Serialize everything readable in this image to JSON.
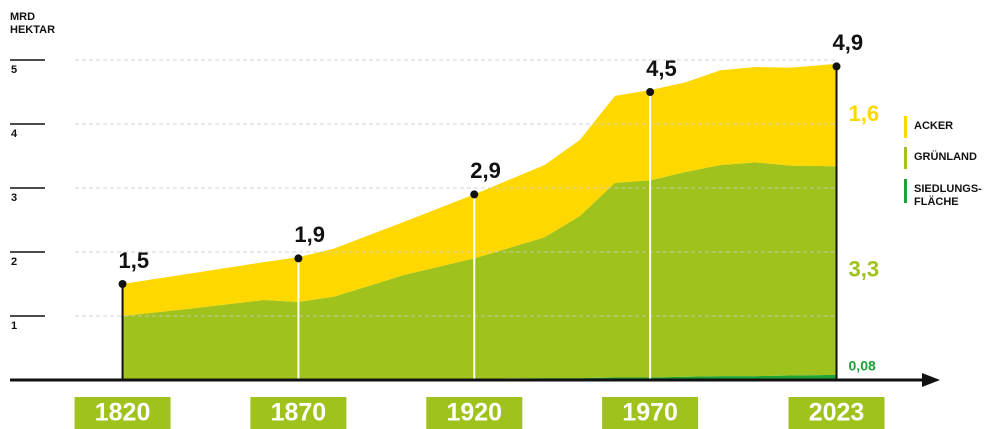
{
  "chart_data": {
    "type": "stacked_area",
    "y_label": "MRD\nHEKTAR",
    "x": [
      1820,
      1840,
      1860,
      1870,
      1880,
      1900,
      1920,
      1940,
      1950,
      1960,
      1970,
      1980,
      1990,
      2000,
      2010,
      2023
    ],
    "xlim": [
      1788,
      2051
    ],
    "xticks": [
      1820,
      1870,
      1920,
      1970,
      2023
    ],
    "ylim": [
      0,
      5
    ],
    "yticks": [
      1,
      2,
      3,
      4,
      5
    ],
    "grid": true,
    "series": [
      {
        "name": "SIEDLUNGS-\nFLÄCHE",
        "color": "#1fa337",
        "values": [
          0.01,
          0.01,
          0.01,
          0.01,
          0.01,
          0.02,
          0.02,
          0.03,
          0.03,
          0.04,
          0.04,
          0.05,
          0.06,
          0.06,
          0.07,
          0.08
        ],
        "end_label": "0,08"
      },
      {
        "name": "GRÜNLAND",
        "color": "#9fc21c",
        "values": [
          0.99,
          1.11,
          1.24,
          1.21,
          1.29,
          1.62,
          1.88,
          2.2,
          2.53,
          3.04,
          3.08,
          3.2,
          3.3,
          3.34,
          3.28,
          3.26
        ],
        "end_label": "3,3"
      },
      {
        "name": "ACKER",
        "color": "#ffd800",
        "values": [
          0.5,
          0.55,
          0.59,
          0.7,
          0.75,
          0.83,
          1.0,
          1.13,
          1.19,
          1.36,
          1.41,
          1.4,
          1.48,
          1.49,
          1.53,
          1.6
        ],
        "end_label": "1,6"
      }
    ],
    "annotations": [
      {
        "x": 1820,
        "value": 1.5,
        "label": "1,5"
      },
      {
        "x": 1870,
        "value": 1.9,
        "label": "1,9"
      },
      {
        "x": 1920,
        "value": 2.9,
        "label": "2,9"
      },
      {
        "x": 1970,
        "value": 4.5,
        "label": "4,5"
      },
      {
        "x": 2023,
        "value": 4.9,
        "label": "4,9"
      }
    ]
  }
}
